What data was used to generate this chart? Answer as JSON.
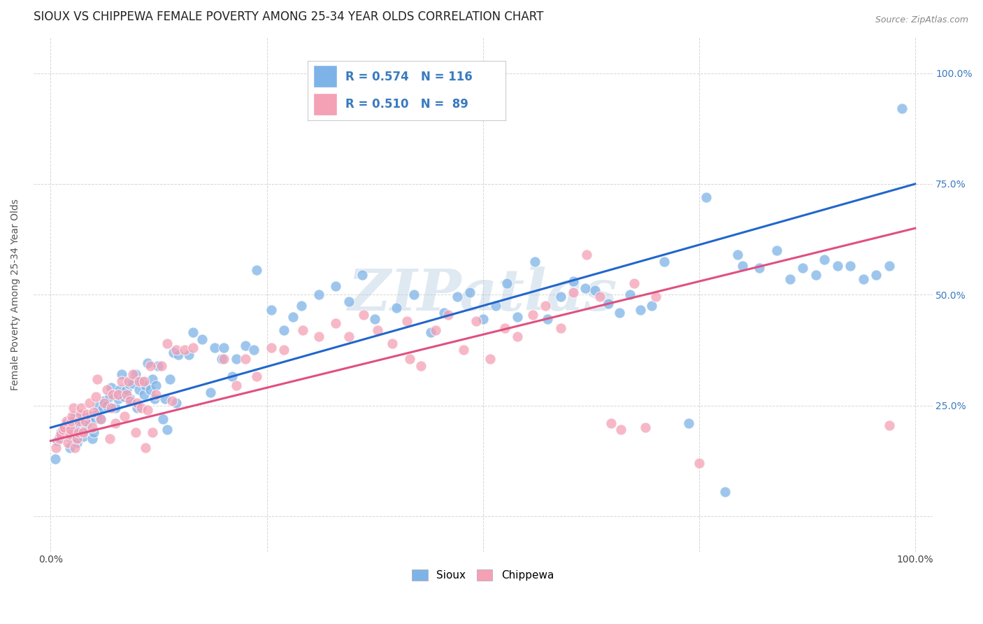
{
  "title": "SIOUX VS CHIPPEWA FEMALE POVERTY AMONG 25-34 YEAR OLDS CORRELATION CHART",
  "source": "Source: ZipAtlas.com",
  "ylabel": "Female Poverty Among 25-34 Year Olds",
  "xlim": [
    -0.02,
    1.02
  ],
  "ylim": [
    -0.08,
    1.08
  ],
  "sioux_color": "#7eb3e8",
  "chippewa_color": "#f4a0b5",
  "sioux_line_color": "#2266cc",
  "chippewa_line_color": "#e05080",
  "sioux_R": 0.574,
  "sioux_N": 116,
  "chippewa_R": 0.51,
  "chippewa_N": 89,
  "legend_label_sioux": "Sioux",
  "legend_label_chippewa": "Chippewa",
  "watermark": "ZIPatlas",
  "background_color": "#ffffff",
  "grid_color": "#cccccc",
  "title_fontsize": 12,
  "axis_label_fontsize": 10,
  "tick_fontsize": 10,
  "sioux_line_x0": 0.0,
  "sioux_line_y0": 0.2,
  "sioux_line_x1": 1.0,
  "sioux_line_y1": 0.75,
  "chippewa_line_x0": 0.0,
  "chippewa_line_y0": 0.17,
  "chippewa_line_x1": 1.0,
  "chippewa_line_y1": 0.65,
  "sioux_points": [
    [
      0.005,
      0.13
    ],
    [
      0.008,
      0.17
    ],
    [
      0.01,
      0.18
    ],
    [
      0.012,
      0.19
    ],
    [
      0.014,
      0.195
    ],
    [
      0.016,
      0.2
    ],
    [
      0.018,
      0.205
    ],
    [
      0.019,
      0.21
    ],
    [
      0.022,
      0.155
    ],
    [
      0.022,
      0.18
    ],
    [
      0.024,
      0.195
    ],
    [
      0.025,
      0.2
    ],
    [
      0.026,
      0.21
    ],
    [
      0.027,
      0.215
    ],
    [
      0.028,
      0.22
    ],
    [
      0.028,
      0.225
    ],
    [
      0.03,
      0.165
    ],
    [
      0.03,
      0.175
    ],
    [
      0.031,
      0.185
    ],
    [
      0.032,
      0.2
    ],
    [
      0.033,
      0.21
    ],
    [
      0.034,
      0.215
    ],
    [
      0.034,
      0.22
    ],
    [
      0.035,
      0.225
    ],
    [
      0.038,
      0.18
    ],
    [
      0.04,
      0.195
    ],
    [
      0.04,
      0.205
    ],
    [
      0.042,
      0.21
    ],
    [
      0.043,
      0.215
    ],
    [
      0.044,
      0.22
    ],
    [
      0.045,
      0.225
    ],
    [
      0.048,
      0.175
    ],
    [
      0.05,
      0.19
    ],
    [
      0.052,
      0.22
    ],
    [
      0.054,
      0.23
    ],
    [
      0.055,
      0.25
    ],
    [
      0.058,
      0.22
    ],
    [
      0.06,
      0.245
    ],
    [
      0.062,
      0.26
    ],
    [
      0.065,
      0.25
    ],
    [
      0.068,
      0.27
    ],
    [
      0.07,
      0.29
    ],
    [
      0.075,
      0.245
    ],
    [
      0.078,
      0.265
    ],
    [
      0.08,
      0.285
    ],
    [
      0.082,
      0.32
    ],
    [
      0.085,
      0.27
    ],
    [
      0.088,
      0.285
    ],
    [
      0.09,
      0.3
    ],
    [
      0.092,
      0.265
    ],
    [
      0.095,
      0.3
    ],
    [
      0.098,
      0.32
    ],
    [
      0.1,
      0.245
    ],
    [
      0.102,
      0.285
    ],
    [
      0.105,
      0.305
    ],
    [
      0.108,
      0.275
    ],
    [
      0.11,
      0.295
    ],
    [
      0.112,
      0.345
    ],
    [
      0.115,
      0.285
    ],
    [
      0.118,
      0.31
    ],
    [
      0.12,
      0.265
    ],
    [
      0.122,
      0.295
    ],
    [
      0.124,
      0.34
    ],
    [
      0.13,
      0.22
    ],
    [
      0.132,
      0.265
    ],
    [
      0.135,
      0.195
    ],
    [
      0.138,
      0.31
    ],
    [
      0.142,
      0.37
    ],
    [
      0.145,
      0.255
    ],
    [
      0.148,
      0.365
    ],
    [
      0.16,
      0.365
    ],
    [
      0.165,
      0.415
    ],
    [
      0.175,
      0.4
    ],
    [
      0.185,
      0.28
    ],
    [
      0.19,
      0.38
    ],
    [
      0.198,
      0.355
    ],
    [
      0.2,
      0.38
    ],
    [
      0.21,
      0.315
    ],
    [
      0.215,
      0.355
    ],
    [
      0.225,
      0.385
    ],
    [
      0.235,
      0.375
    ],
    [
      0.238,
      0.555
    ],
    [
      0.255,
      0.465
    ],
    [
      0.27,
      0.42
    ],
    [
      0.28,
      0.45
    ],
    [
      0.29,
      0.475
    ],
    [
      0.31,
      0.5
    ],
    [
      0.33,
      0.52
    ],
    [
      0.345,
      0.485
    ],
    [
      0.36,
      0.545
    ],
    [
      0.375,
      0.445
    ],
    [
      0.4,
      0.47
    ],
    [
      0.42,
      0.5
    ],
    [
      0.44,
      0.415
    ],
    [
      0.455,
      0.46
    ],
    [
      0.47,
      0.495
    ],
    [
      0.485,
      0.505
    ],
    [
      0.5,
      0.445
    ],
    [
      0.515,
      0.475
    ],
    [
      0.528,
      0.525
    ],
    [
      0.54,
      0.45
    ],
    [
      0.56,
      0.575
    ],
    [
      0.575,
      0.445
    ],
    [
      0.59,
      0.495
    ],
    [
      0.605,
      0.53
    ],
    [
      0.618,
      0.515
    ],
    [
      0.63,
      0.51
    ],
    [
      0.645,
      0.48
    ],
    [
      0.658,
      0.46
    ],
    [
      0.67,
      0.5
    ],
    [
      0.682,
      0.465
    ],
    [
      0.695,
      0.475
    ],
    [
      0.71,
      0.575
    ],
    [
      0.738,
      0.21
    ],
    [
      0.758,
      0.72
    ],
    [
      0.78,
      0.055
    ],
    [
      0.795,
      0.59
    ],
    [
      0.8,
      0.565
    ],
    [
      0.82,
      0.56
    ],
    [
      0.84,
      0.6
    ],
    [
      0.855,
      0.535
    ],
    [
      0.87,
      0.56
    ],
    [
      0.885,
      0.545
    ],
    [
      0.895,
      0.58
    ],
    [
      0.91,
      0.565
    ],
    [
      0.925,
      0.565
    ],
    [
      0.94,
      0.535
    ],
    [
      0.955,
      0.545
    ],
    [
      0.97,
      0.565
    ],
    [
      0.985,
      0.92
    ]
  ],
  "chippewa_points": [
    [
      0.006,
      0.155
    ],
    [
      0.01,
      0.175
    ],
    [
      0.012,
      0.185
    ],
    [
      0.014,
      0.195
    ],
    [
      0.016,
      0.2
    ],
    [
      0.018,
      0.215
    ],
    [
      0.02,
      0.165
    ],
    [
      0.022,
      0.185
    ],
    [
      0.023,
      0.195
    ],
    [
      0.024,
      0.215
    ],
    [
      0.025,
      0.225
    ],
    [
      0.026,
      0.245
    ],
    [
      0.028,
      0.155
    ],
    [
      0.03,
      0.175
    ],
    [
      0.032,
      0.19
    ],
    [
      0.033,
      0.215
    ],
    [
      0.034,
      0.23
    ],
    [
      0.035,
      0.245
    ],
    [
      0.038,
      0.19
    ],
    [
      0.04,
      0.215
    ],
    [
      0.042,
      0.23
    ],
    [
      0.045,
      0.255
    ],
    [
      0.048,
      0.2
    ],
    [
      0.05,
      0.235
    ],
    [
      0.052,
      0.27
    ],
    [
      0.054,
      0.31
    ],
    [
      0.058,
      0.22
    ],
    [
      0.062,
      0.255
    ],
    [
      0.065,
      0.285
    ],
    [
      0.068,
      0.175
    ],
    [
      0.07,
      0.245
    ],
    [
      0.072,
      0.275
    ],
    [
      0.075,
      0.21
    ],
    [
      0.078,
      0.275
    ],
    [
      0.082,
      0.305
    ],
    [
      0.085,
      0.225
    ],
    [
      0.088,
      0.275
    ],
    [
      0.09,
      0.305
    ],
    [
      0.092,
      0.26
    ],
    [
      0.095,
      0.32
    ],
    [
      0.098,
      0.19
    ],
    [
      0.1,
      0.255
    ],
    [
      0.102,
      0.305
    ],
    [
      0.105,
      0.245
    ],
    [
      0.108,
      0.305
    ],
    [
      0.11,
      0.155
    ],
    [
      0.112,
      0.24
    ],
    [
      0.115,
      0.34
    ],
    [
      0.118,
      0.19
    ],
    [
      0.122,
      0.275
    ],
    [
      0.128,
      0.34
    ],
    [
      0.135,
      0.39
    ],
    [
      0.14,
      0.26
    ],
    [
      0.145,
      0.375
    ],
    [
      0.155,
      0.375
    ],
    [
      0.165,
      0.38
    ],
    [
      0.415,
      0.355
    ],
    [
      0.2,
      0.355
    ],
    [
      0.215,
      0.295
    ],
    [
      0.225,
      0.355
    ],
    [
      0.238,
      0.315
    ],
    [
      0.255,
      0.38
    ],
    [
      0.27,
      0.375
    ],
    [
      0.292,
      0.42
    ],
    [
      0.31,
      0.405
    ],
    [
      0.33,
      0.435
    ],
    [
      0.345,
      0.405
    ],
    [
      0.362,
      0.455
    ],
    [
      0.378,
      0.42
    ],
    [
      0.395,
      0.39
    ],
    [
      0.412,
      0.44
    ],
    [
      0.428,
      0.34
    ],
    [
      0.445,
      0.42
    ],
    [
      0.46,
      0.455
    ],
    [
      0.478,
      0.375
    ],
    [
      0.492,
      0.44
    ],
    [
      0.508,
      0.355
    ],
    [
      0.525,
      0.425
    ],
    [
      0.54,
      0.405
    ],
    [
      0.558,
      0.455
    ],
    [
      0.572,
      0.475
    ],
    [
      0.59,
      0.425
    ],
    [
      0.605,
      0.505
    ],
    [
      0.62,
      0.59
    ],
    [
      0.635,
      0.495
    ],
    [
      0.648,
      0.21
    ],
    [
      0.66,
      0.195
    ],
    [
      0.675,
      0.525
    ],
    [
      0.688,
      0.2
    ],
    [
      0.7,
      0.495
    ],
    [
      0.97,
      0.205
    ],
    [
      0.75,
      0.12
    ]
  ]
}
